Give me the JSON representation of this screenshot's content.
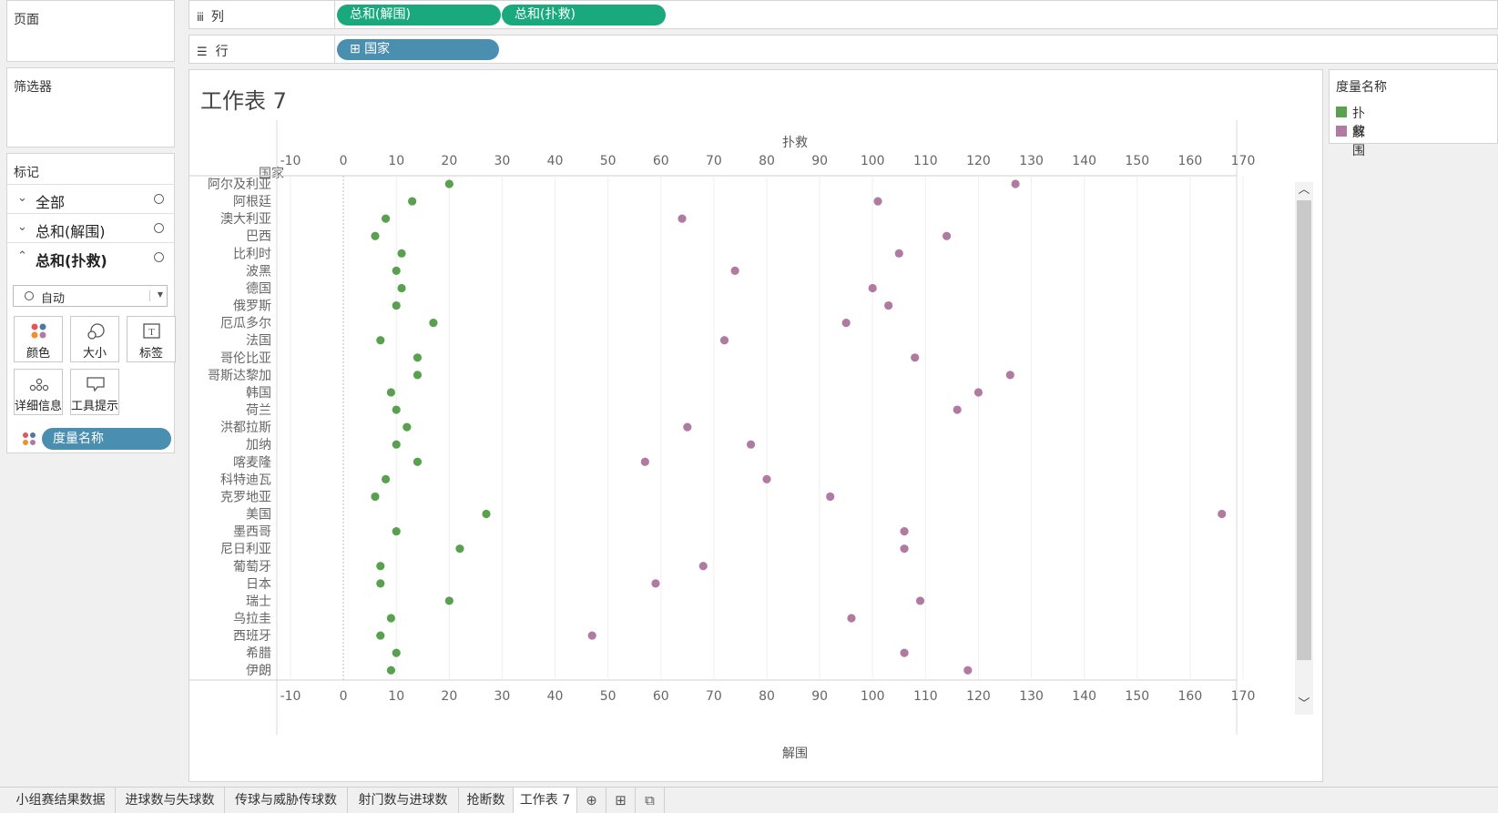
{
  "pages_panel": {
    "title": "页面"
  },
  "filters_panel": {
    "title": "筛选器"
  },
  "marks_panel": {
    "title": "标记",
    "rows": [
      {
        "label": "全部",
        "chevron": "⌄"
      },
      {
        "label": "总和(解围)",
        "chevron": "⌄"
      },
      {
        "label": "总和(扑救)",
        "chevron": "⌃"
      }
    ],
    "mark_type": "自动",
    "buttons": [
      {
        "label": "颜色",
        "icon": "color-icon"
      },
      {
        "label": "大小",
        "icon": "size-icon"
      },
      {
        "label": "标签",
        "icon": "label-icon"
      },
      {
        "label": "详细信息",
        "icon": "detail-icon"
      },
      {
        "label": "工具提示",
        "icon": "tooltip-icon"
      }
    ],
    "measure_pill": "度量名称"
  },
  "columns_shelf": {
    "label": "列",
    "icon": "iii",
    "pills": [
      "总和(解围)",
      "总和(扑救)"
    ]
  },
  "rows_shelf": {
    "label": "行",
    "icon": "☰",
    "pills": [
      "⊞ 国家"
    ]
  },
  "sheet": {
    "title": "工作表 7"
  },
  "legend": {
    "title": "度量名称",
    "items": [
      {
        "label": "扑救",
        "color": "#59a14f"
      },
      {
        "label": "解围",
        "color": "#b07aa1"
      }
    ]
  },
  "tabs": [
    "小组赛结果数据",
    "进球数与失球数",
    "传球与威胁传球数",
    "射门数与进球数",
    "抢断数",
    "工作表 7"
  ],
  "active_tab": "工作表 7",
  "chart_data": {
    "type": "scatter",
    "row_header": "国家",
    "x_top_label": "扑救",
    "x_bottom_label": "解围",
    "xlim": [
      -10,
      170
    ],
    "ticks": [
      -10,
      0,
      10,
      20,
      30,
      40,
      50,
      60,
      70,
      80,
      90,
      100,
      110,
      120,
      130,
      140,
      150,
      160,
      170
    ],
    "categories": [
      "阿尔及利亚",
      "阿根廷",
      "澳大利亚",
      "巴西",
      "比利时",
      "波黑",
      "德国",
      "俄罗斯",
      "厄瓜多尔",
      "法国",
      "哥伦比亚",
      "哥斯达黎加",
      "韩国",
      "荷兰",
      "洪都拉斯",
      "加纳",
      "喀麦隆",
      "科特迪瓦",
      "克罗地亚",
      "美国",
      "墨西哥",
      "尼日利亚",
      "葡萄牙",
      "日本",
      "瑞士",
      "乌拉圭",
      "西班牙",
      "希腊",
      "伊朗"
    ],
    "series": [
      {
        "name": "扑救",
        "color": "#59a14f",
        "values": [
          20,
          13,
          8,
          6,
          11,
          10,
          11,
          10,
          17,
          7,
          14,
          14,
          9,
          10,
          12,
          10,
          14,
          8,
          6,
          27,
          10,
          22,
          7,
          7,
          20,
          9,
          7,
          10,
          9
        ]
      },
      {
        "name": "解围",
        "color": "#b07aa1",
        "values": [
          127,
          101,
          64,
          114,
          105,
          74,
          100,
          103,
          95,
          72,
          108,
          126,
          120,
          116,
          65,
          77,
          57,
          80,
          92,
          166,
          106,
          106,
          68,
          59,
          109,
          96,
          47,
          106,
          118
        ]
      }
    ]
  }
}
